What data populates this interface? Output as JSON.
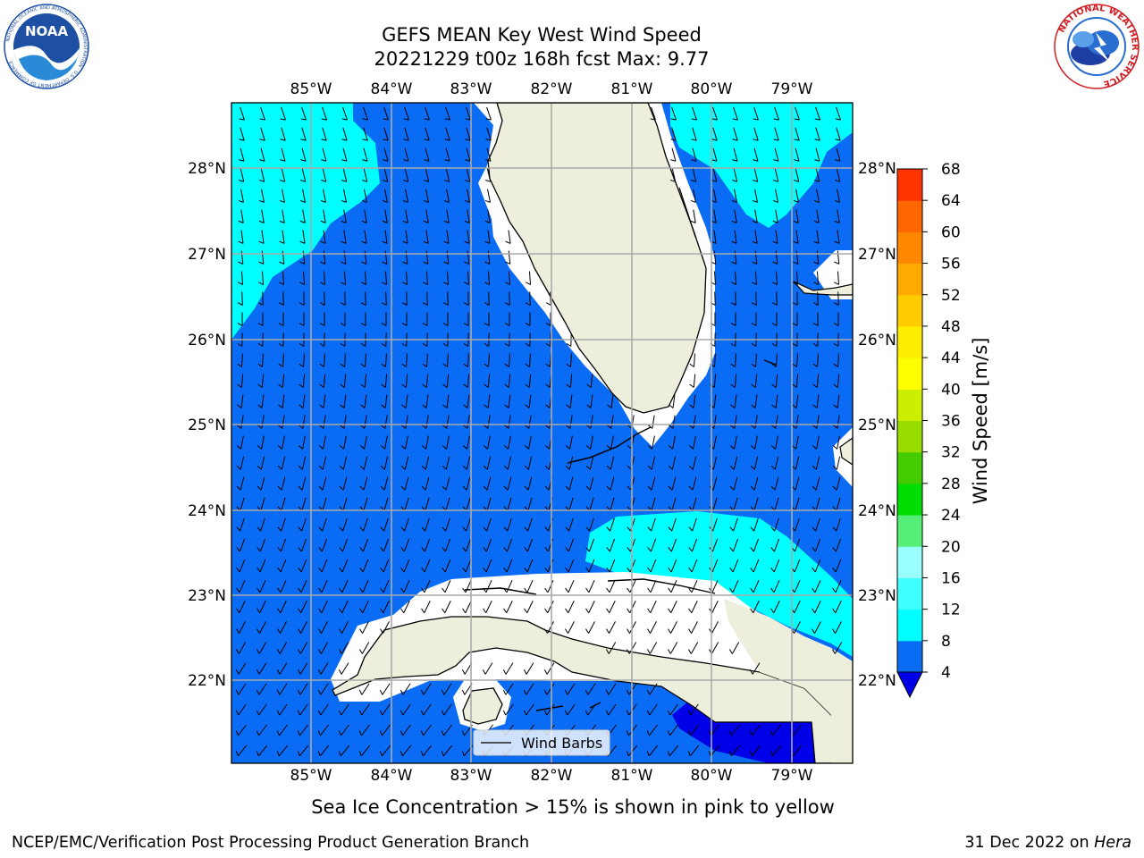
{
  "title": {
    "line1": "GEFS MEAN Key West Wind Speed",
    "line2": "20221229 t00z 168h fcst   Max: 9.77"
  },
  "logos": {
    "left": {
      "name": "NOAA",
      "ring_text": "NATIONAL OCEANIC AND ATMOSPHERIC ADMINISTRATION · U.S. DEPARTMENT OF COMMERCE",
      "color": "#1d4fa3"
    },
    "right": {
      "ring_text": "NATIONAL WEATHER SERVICE",
      "color": "#d11f26"
    }
  },
  "map": {
    "lon_labels": [
      "85°W",
      "84°W",
      "83°W",
      "82°W",
      "81°W",
      "80°W",
      "79°W"
    ],
    "lat_labels": [
      "28°N",
      "27°N",
      "26°N",
      "25°N",
      "24°N",
      "23°N",
      "22°N"
    ],
    "ocean_color": "#0a6cf4",
    "light_wind_color": "#00ffff",
    "calm_color": "#0000e8",
    "land_color": "#eeeedd",
    "legend_label": "Wind Barbs"
  },
  "colorbar": {
    "label": "Wind Speed [m/s]",
    "ticks": [
      "4",
      "8",
      "12",
      "16",
      "20",
      "24",
      "28",
      "32",
      "36",
      "40",
      "44",
      "48",
      "52",
      "56",
      "60",
      "64",
      "68"
    ],
    "colors": [
      "#0a6cf4",
      "#00ffff",
      "#40ffff",
      "#99ffff",
      "#55ee77",
      "#00dd00",
      "#44cc00",
      "#99dd00",
      "#ccee00",
      "#ffff00",
      "#ffee00",
      "#ffcc00",
      "#ffaa00",
      "#ff8800",
      "#ff6600",
      "#ff3300",
      "#ff0000"
    ],
    "underflow_color": "#0000e8"
  },
  "note": "Sea Ice Concentration > 15% is shown in pink to yellow",
  "footer": {
    "left": "NCEP/EMC/Verification Post Processing Product Generation Branch",
    "right_date": "31 Dec 2022 on ",
    "right_machine": "Hera"
  }
}
